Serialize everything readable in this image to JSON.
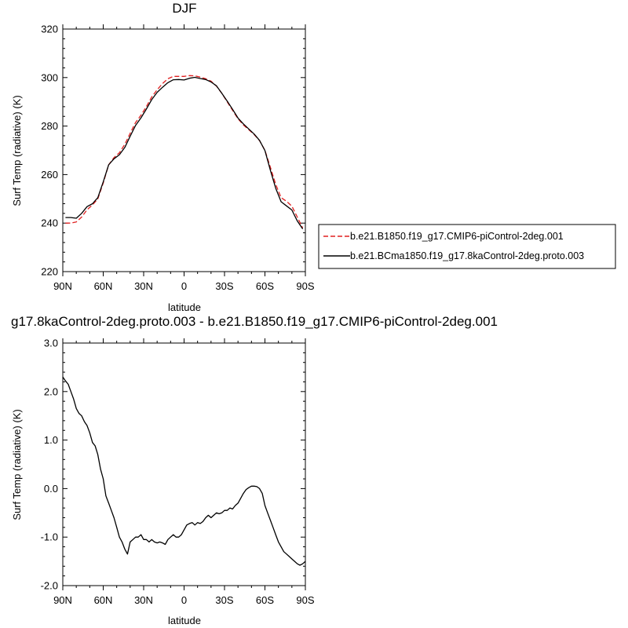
{
  "chart_data": [
    {
      "type": "line",
      "title": "DJF",
      "xlabel": "latitude",
      "ylabel": "Surf Temp (radiative) (K)",
      "xlim": [
        90,
        -90
      ],
      "ylim": [
        220,
        320
      ],
      "x_ticks": [
        {
          "value": 90,
          "label": "90N"
        },
        {
          "value": 60,
          "label": "60N"
        },
        {
          "value": 30,
          "label": "30N"
        },
        {
          "value": 0,
          "label": "0"
        },
        {
          "value": -30,
          "label": "30S"
        },
        {
          "value": -60,
          "label": "60S"
        },
        {
          "value": -90,
          "label": "90S"
        }
      ],
      "y_ticks": [
        {
          "value": 220,
          "label": "220"
        },
        {
          "value": 240,
          "label": "240"
        },
        {
          "value": 260,
          "label": "260"
        },
        {
          "value": 280,
          "label": "280"
        },
        {
          "value": 300,
          "label": "300"
        },
        {
          "value": 320,
          "label": "320"
        }
      ],
      "legend_position": "right",
      "series": [
        {
          "name": "b.e21.B1850.f19_g17.CMIP6-piControl-2deg.001",
          "color": "#e02020",
          "dash": "dashed",
          "x": [
            88,
            84,
            80,
            76,
            72,
            68,
            64,
            60,
            56,
            52,
            48,
            44,
            40,
            36,
            32,
            28,
            24,
            20,
            16,
            12,
            8,
            4,
            0,
            -4,
            -8,
            -12,
            -16,
            -20,
            -24,
            -28,
            -32,
            -36,
            -40,
            -44,
            -48,
            -52,
            -56,
            -60,
            -64,
            -68,
            -72,
            -76,
            -80,
            -84,
            -88
          ],
          "y": [
            240.0,
            240.0,
            240.5,
            242.5,
            245.5,
            247.5,
            250.0,
            256.5,
            264.0,
            267.0,
            269.0,
            272.5,
            277.0,
            281.5,
            284.5,
            288.0,
            292.0,
            295.0,
            297.5,
            299.5,
            300.5,
            300.5,
            300.5,
            300.8,
            300.7,
            300.2,
            299.5,
            298.5,
            296.5,
            293.5,
            290.0,
            286.5,
            283.0,
            280.5,
            278.5,
            276.5,
            274.0,
            270.0,
            263.0,
            256.0,
            250.5,
            249.0,
            247.0,
            242.5,
            238.0
          ]
        },
        {
          "name": "b.e21.BCma1850.f19_g17.8kaControl-2deg.proto.003",
          "color": "#000000",
          "dash": "solid",
          "x": [
            88,
            84,
            80,
            76,
            72,
            68,
            64,
            60,
            56,
            52,
            48,
            44,
            40,
            36,
            32,
            28,
            24,
            20,
            16,
            12,
            8,
            4,
            0,
            -4,
            -8,
            -12,
            -16,
            -20,
            -24,
            -28,
            -32,
            -36,
            -40,
            -44,
            -48,
            -52,
            -56,
            -60,
            -64,
            -68,
            -72,
            -76,
            -80,
            -84,
            -88
          ],
          "y": [
            242.3,
            242.3,
            242.0,
            244.0,
            246.8,
            248.0,
            250.5,
            257.0,
            264.0,
            266.5,
            268.2,
            271.2,
            275.8,
            280.3,
            283.4,
            287.0,
            290.9,
            293.9,
            296.0,
            297.9,
            299.1,
            299.2,
            299.0,
            299.7,
            300.1,
            299.6,
            299.2,
            298.2,
            296.6,
            293.5,
            290.3,
            286.9,
            283.3,
            280.9,
            278.8,
            276.7,
            274.1,
            269.9,
            261.8,
            254.4,
            248.8,
            247.1,
            245.4,
            240.9,
            237.6
          ]
        }
      ]
    },
    {
      "type": "line",
      "title": "g17.8kaControl-2deg.proto.003 - b.e21.B1850.f19_g17.CMIP6-piControl-2deg.001",
      "xlabel": "latitude",
      "ylabel": "Surf Temp (radiative) (K)",
      "xlim": [
        90,
        -90
      ],
      "ylim": [
        -2.0,
        3.0
      ],
      "x_ticks": [
        {
          "value": 90,
          "label": "90N"
        },
        {
          "value": 60,
          "label": "60N"
        },
        {
          "value": 30,
          "label": "30N"
        },
        {
          "value": 0,
          "label": "0"
        },
        {
          "value": -30,
          "label": "30S"
        },
        {
          "value": -60,
          "label": "60S"
        },
        {
          "value": -90,
          "label": "90S"
        }
      ],
      "y_ticks": [
        {
          "value": -2.0,
          "label": "-2.0"
        },
        {
          "value": -1.0,
          "label": "-1.0"
        },
        {
          "value": 0.0,
          "label": "0.0"
        },
        {
          "value": 1.0,
          "label": "1.0"
        },
        {
          "value": 2.0,
          "label": "2.0"
        },
        {
          "value": 3.0,
          "label": "3.0"
        }
      ],
      "series": [
        {
          "color": "#000000",
          "dash": "solid",
          "x": [
            90,
            88,
            86,
            84,
            82,
            80,
            78,
            76,
            74,
            72,
            70,
            68,
            66,
            64,
            62,
            60,
            58,
            56,
            54,
            52,
            50,
            48,
            46,
            44,
            42,
            40,
            38,
            36,
            34,
            32,
            30,
            28,
            26,
            24,
            22,
            20,
            18,
            16,
            14,
            12,
            10,
            8,
            6,
            4,
            2,
            0,
            -2,
            -4,
            -6,
            -8,
            -10,
            -12,
            -14,
            -16,
            -18,
            -20,
            -22,
            -24,
            -26,
            -28,
            -30,
            -32,
            -34,
            -36,
            -38,
            -40,
            -42,
            -44,
            -46,
            -48,
            -50,
            -52,
            -54,
            -56,
            -58,
            -60,
            -62,
            -64,
            -66,
            -68,
            -70,
            -72,
            -74,
            -76,
            -78,
            -80,
            -82,
            -84,
            -86,
            -88,
            -90
          ],
          "y": [
            2.3,
            2.22,
            2.15,
            2.0,
            1.85,
            1.65,
            1.55,
            1.5,
            1.38,
            1.3,
            1.15,
            0.95,
            0.88,
            0.7,
            0.4,
            0.2,
            -0.15,
            -0.3,
            -0.45,
            -0.6,
            -0.8,
            -1.0,
            -1.1,
            -1.25,
            -1.35,
            -1.1,
            -1.05,
            -1.0,
            -1.0,
            -0.95,
            -1.05,
            -1.05,
            -1.1,
            -1.05,
            -1.1,
            -1.12,
            -1.1,
            -1.12,
            -1.15,
            -1.05,
            -1.0,
            -0.95,
            -1.0,
            -1.0,
            -0.95,
            -0.85,
            -0.75,
            -0.72,
            -0.7,
            -0.75,
            -0.7,
            -0.72,
            -0.68,
            -0.6,
            -0.55,
            -0.6,
            -0.55,
            -0.5,
            -0.52,
            -0.5,
            -0.45,
            -0.45,
            -0.4,
            -0.42,
            -0.35,
            -0.3,
            -0.2,
            -0.1,
            -0.02,
            0.02,
            0.05,
            0.05,
            0.04,
            0.0,
            -0.1,
            -0.35,
            -0.5,
            -0.65,
            -0.8,
            -0.95,
            -1.1,
            -1.2,
            -1.3,
            -1.35,
            -1.4,
            -1.45,
            -1.5,
            -1.55,
            -1.58,
            -1.55,
            -1.5
          ]
        }
      ]
    }
  ]
}
